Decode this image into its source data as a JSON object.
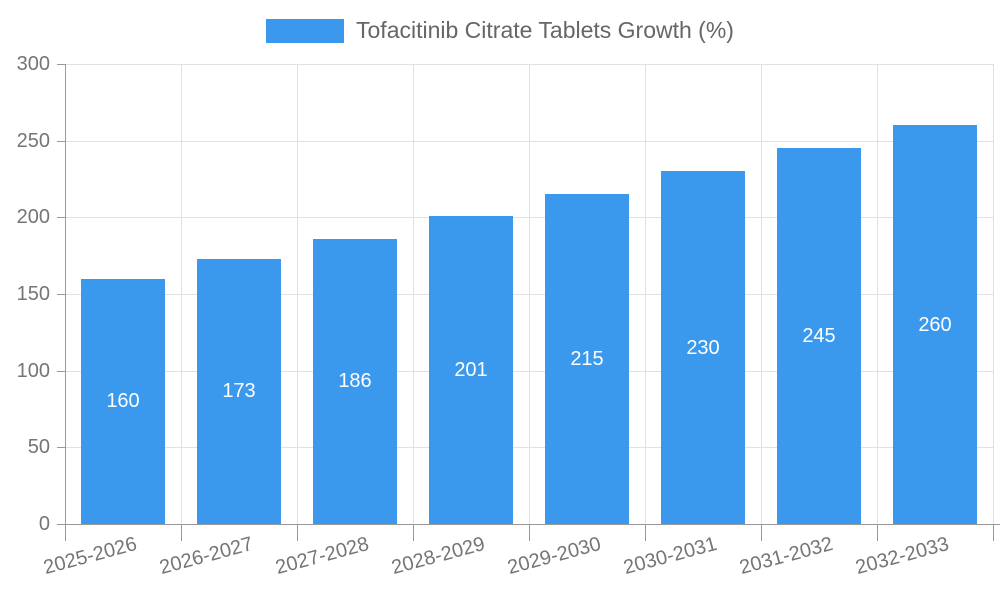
{
  "legend": {
    "label": "Tofacitinib Citrate Tablets Growth (%)"
  },
  "colors": {
    "bar": "#3A99EC",
    "axis": "#999999",
    "grid": "#E1E1E1",
    "axis_label": "#757575",
    "legend_text": "#666666",
    "value_label": "#FFFFFF",
    "background": "#FFFFFF"
  },
  "chart_data": {
    "type": "bar",
    "title": "",
    "categories": [
      "2025-2026",
      "2026-2027",
      "2027-2028",
      "2028-2029",
      "2029-2030",
      "2030-2031",
      "2031-2032",
      "2032-2033"
    ],
    "series": [
      {
        "name": "Tofacitinib Citrate Tablets Growth (%)",
        "values": [
          160,
          173,
          186,
          201,
          215,
          230,
          245,
          260
        ]
      }
    ],
    "xlabel": "",
    "ylabel": "",
    "ylim": [
      0,
      300
    ],
    "yticks": [
      0,
      50,
      100,
      150,
      200,
      250,
      300
    ],
    "grid": true,
    "legend_position": "top-center",
    "value_label_position": "inside-center",
    "xlabel_rotation_deg": -15
  }
}
